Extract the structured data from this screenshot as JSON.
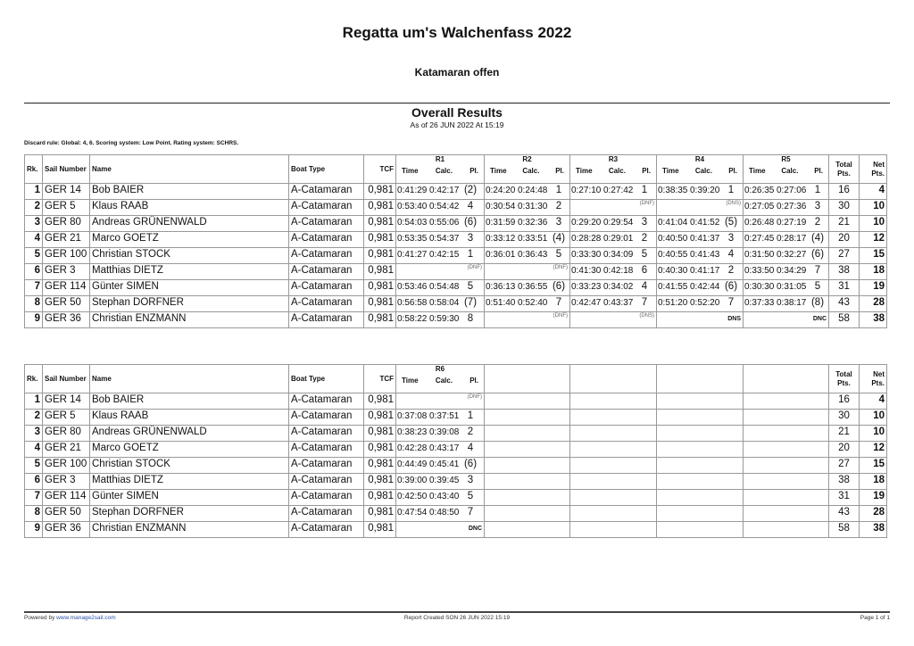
{
  "header": {
    "title": "Regatta um's Walchenfass 2022",
    "subtitle": "Katamaran offen",
    "section": "Overall Results",
    "as_of": "As of 26 JUN 2022 At 15:19",
    "discard_rule": "Discard rule: Global: 4, 6. Scoring system: Low Point. Rating system: SCHRS."
  },
  "columns": {
    "rank": "Rk.",
    "sail": "Sail Number",
    "name": "Name",
    "boat": "Boat Type",
    "tcf": "TCF",
    "time": "Time",
    "calc": "Calc.",
    "pl": "Pl.",
    "total": "Total Pts.",
    "net": "Net Pts."
  },
  "tables": [
    {
      "races": [
        "R1",
        "R2",
        "R3",
        "R4",
        "R5"
      ],
      "empty_columns": 0,
      "rows": [
        {
          "rank": "1",
          "sail": "GER 14",
          "name": "Bob BAIER",
          "boat": "A-Catamaran",
          "tcf": "0,981",
          "results": [
            [
              "0:41:29",
              "0:42:17",
              "(2)"
            ],
            [
              "0:24:20",
              "0:24:48",
              "1"
            ],
            [
              "0:27:10",
              "0:27:42",
              "1"
            ],
            [
              "0:38:35",
              "0:39:20",
              "1"
            ],
            [
              "0:26:35",
              "0:27:06",
              "1"
            ]
          ],
          "total": "16",
          "net": "4"
        },
        {
          "rank": "2",
          "sail": "GER 5",
          "name": "Klaus RAAB",
          "boat": "A-Catamaran",
          "tcf": "0,981",
          "results": [
            [
              "0:53:40",
              "0:54:42",
              "4"
            ],
            [
              "0:30:54",
              "0:31:30",
              "2"
            ],
            {
              "code": "(DNF)"
            },
            {
              "code": "(DNS)"
            },
            [
              "0:27:05",
              "0:27:36",
              "3"
            ]
          ],
          "total": "30",
          "net": "10"
        },
        {
          "rank": "3",
          "sail": "GER 80",
          "name": "Andreas GRÜNENWALD",
          "boat": "A-Catamaran",
          "tcf": "0,981",
          "results": [
            [
              "0:54:03",
              "0:55:06",
              "(6)"
            ],
            [
              "0:31:59",
              "0:32:36",
              "3"
            ],
            [
              "0:29:20",
              "0:29:54",
              "3"
            ],
            [
              "0:41:04",
              "0:41:52",
              "(5)"
            ],
            [
              "0:26:48",
              "0:27:19",
              "2"
            ]
          ],
          "total": "21",
          "net": "10"
        },
        {
          "rank": "4",
          "sail": "GER 21",
          "name": "Marco GOETZ",
          "boat": "A-Catamaran",
          "tcf": "0,981",
          "results": [
            [
              "0:53:35",
              "0:54:37",
              "3"
            ],
            [
              "0:33:12",
              "0:33:51",
              "(4)"
            ],
            [
              "0:28:28",
              "0:29:01",
              "2"
            ],
            [
              "0:40:50",
              "0:41:37",
              "3"
            ],
            [
              "0:27:45",
              "0:28:17",
              "(4)"
            ]
          ],
          "total": "20",
          "net": "12"
        },
        {
          "rank": "5",
          "sail": "GER 100",
          "name": "Christian STOCK",
          "boat": "A-Catamaran",
          "tcf": "0,981",
          "results": [
            [
              "0:41:27",
              "0:42:15",
              "1"
            ],
            [
              "0:36:01",
              "0:36:43",
              "5"
            ],
            [
              "0:33:30",
              "0:34:09",
              "5"
            ],
            [
              "0:40:55",
              "0:41:43",
              "4"
            ],
            [
              "0:31:50",
              "0:32:27",
              "(6)"
            ]
          ],
          "total": "27",
          "net": "15"
        },
        {
          "rank": "6",
          "sail": "GER 3",
          "name": "Matthias DIETZ",
          "boat": "A-Catamaran",
          "tcf": "0,981",
          "results": [
            {
              "code": "(DNF)"
            },
            {
              "code": "(DNF)"
            },
            [
              "0:41:30",
              "0:42:18",
              "6"
            ],
            [
              "0:40:30",
              "0:41:17",
              "2"
            ],
            [
              "0:33:50",
              "0:34:29",
              "7"
            ]
          ],
          "total": "38",
          "net": "18"
        },
        {
          "rank": "7",
          "sail": "GER 114",
          "name": "Günter SIMEN",
          "boat": "A-Catamaran",
          "tcf": "0,981",
          "results": [
            [
              "0:53:46",
              "0:54:48",
              "5"
            ],
            [
              "0:36:13",
              "0:36:55",
              "(6)"
            ],
            [
              "0:33:23",
              "0:34:02",
              "4"
            ],
            [
              "0:41:55",
              "0:42:44",
              "(6)"
            ],
            [
              "0:30:30",
              "0:31:05",
              "5"
            ]
          ],
          "total": "31",
          "net": "19"
        },
        {
          "rank": "8",
          "sail": "GER 50",
          "name": "Stephan DORFNER",
          "boat": "A-Catamaran",
          "tcf": "0,981",
          "results": [
            [
              "0:56:58",
              "0:58:04",
              "(7)"
            ],
            [
              "0:51:40",
              "0:52:40",
              "7"
            ],
            [
              "0:42:47",
              "0:43:37",
              "7"
            ],
            [
              "0:51:20",
              "0:52:20",
              "7"
            ],
            [
              "0:37:33",
              "0:38:17",
              "(8)"
            ]
          ],
          "total": "43",
          "net": "28"
        },
        {
          "rank": "9",
          "sail": "GER 36",
          "name": "Christian ENZMANN",
          "boat": "A-Catamaran",
          "tcf": "0,981",
          "results": [
            [
              "0:58:22",
              "0:59:30",
              "8"
            ],
            {
              "code": "(DNF)"
            },
            {
              "code": "(DNS)"
            },
            {
              "code": "DNS"
            },
            {
              "code": "DNC"
            }
          ],
          "total": "58",
          "net": "38"
        }
      ]
    },
    {
      "races": [
        "R6"
      ],
      "empty_columns": 4,
      "rows": [
        {
          "rank": "1",
          "sail": "GER 14",
          "name": "Bob BAIER",
          "boat": "A-Catamaran",
          "tcf": "0,981",
          "results": [
            {
              "code": "(DNF)"
            }
          ],
          "total": "16",
          "net": "4"
        },
        {
          "rank": "2",
          "sail": "GER 5",
          "name": "Klaus RAAB",
          "boat": "A-Catamaran",
          "tcf": "0,981",
          "results": [
            [
              "0:37:08",
              "0:37:51",
              "1"
            ]
          ],
          "total": "30",
          "net": "10"
        },
        {
          "rank": "3",
          "sail": "GER 80",
          "name": "Andreas GRÜNENWALD",
          "boat": "A-Catamaran",
          "tcf": "0,981",
          "results": [
            [
              "0:38:23",
              "0:39:08",
              "2"
            ]
          ],
          "total": "21",
          "net": "10"
        },
        {
          "rank": "4",
          "sail": "GER 21",
          "name": "Marco GOETZ",
          "boat": "A-Catamaran",
          "tcf": "0,981",
          "results": [
            [
              "0:42:28",
              "0:43:17",
              "4"
            ]
          ],
          "total": "20",
          "net": "12"
        },
        {
          "rank": "5",
          "sail": "GER 100",
          "name": "Christian STOCK",
          "boat": "A-Catamaran",
          "tcf": "0,981",
          "results": [
            [
              "0:44:49",
              "0:45:41",
              "(6)"
            ]
          ],
          "total": "27",
          "net": "15"
        },
        {
          "rank": "6",
          "sail": "GER 3",
          "name": "Matthias DIETZ",
          "boat": "A-Catamaran",
          "tcf": "0,981",
          "results": [
            [
              "0:39:00",
              "0:39:45",
              "3"
            ]
          ],
          "total": "38",
          "net": "18"
        },
        {
          "rank": "7",
          "sail": "GER 114",
          "name": "Günter SIMEN",
          "boat": "A-Catamaran",
          "tcf": "0,981",
          "results": [
            [
              "0:42:50",
              "0:43:40",
              "5"
            ]
          ],
          "total": "31",
          "net": "19"
        },
        {
          "rank": "8",
          "sail": "GER 50",
          "name": "Stephan DORFNER",
          "boat": "A-Catamaran",
          "tcf": "0,981",
          "results": [
            [
              "0:47:54",
              "0:48:50",
              "7"
            ]
          ],
          "total": "43",
          "net": "28"
        },
        {
          "rank": "9",
          "sail": "GER 36",
          "name": "Christian ENZMANN",
          "boat": "A-Catamaran",
          "tcf": "0,981",
          "results": [
            {
              "code": "DNC"
            }
          ],
          "total": "58",
          "net": "38"
        }
      ]
    }
  ],
  "footer": {
    "powered_by": "Powered by",
    "link": "www.manage2sail.com",
    "created": "Report Created SON 26 JUN 2022 15:19",
    "page": "Page 1 of 1"
  }
}
